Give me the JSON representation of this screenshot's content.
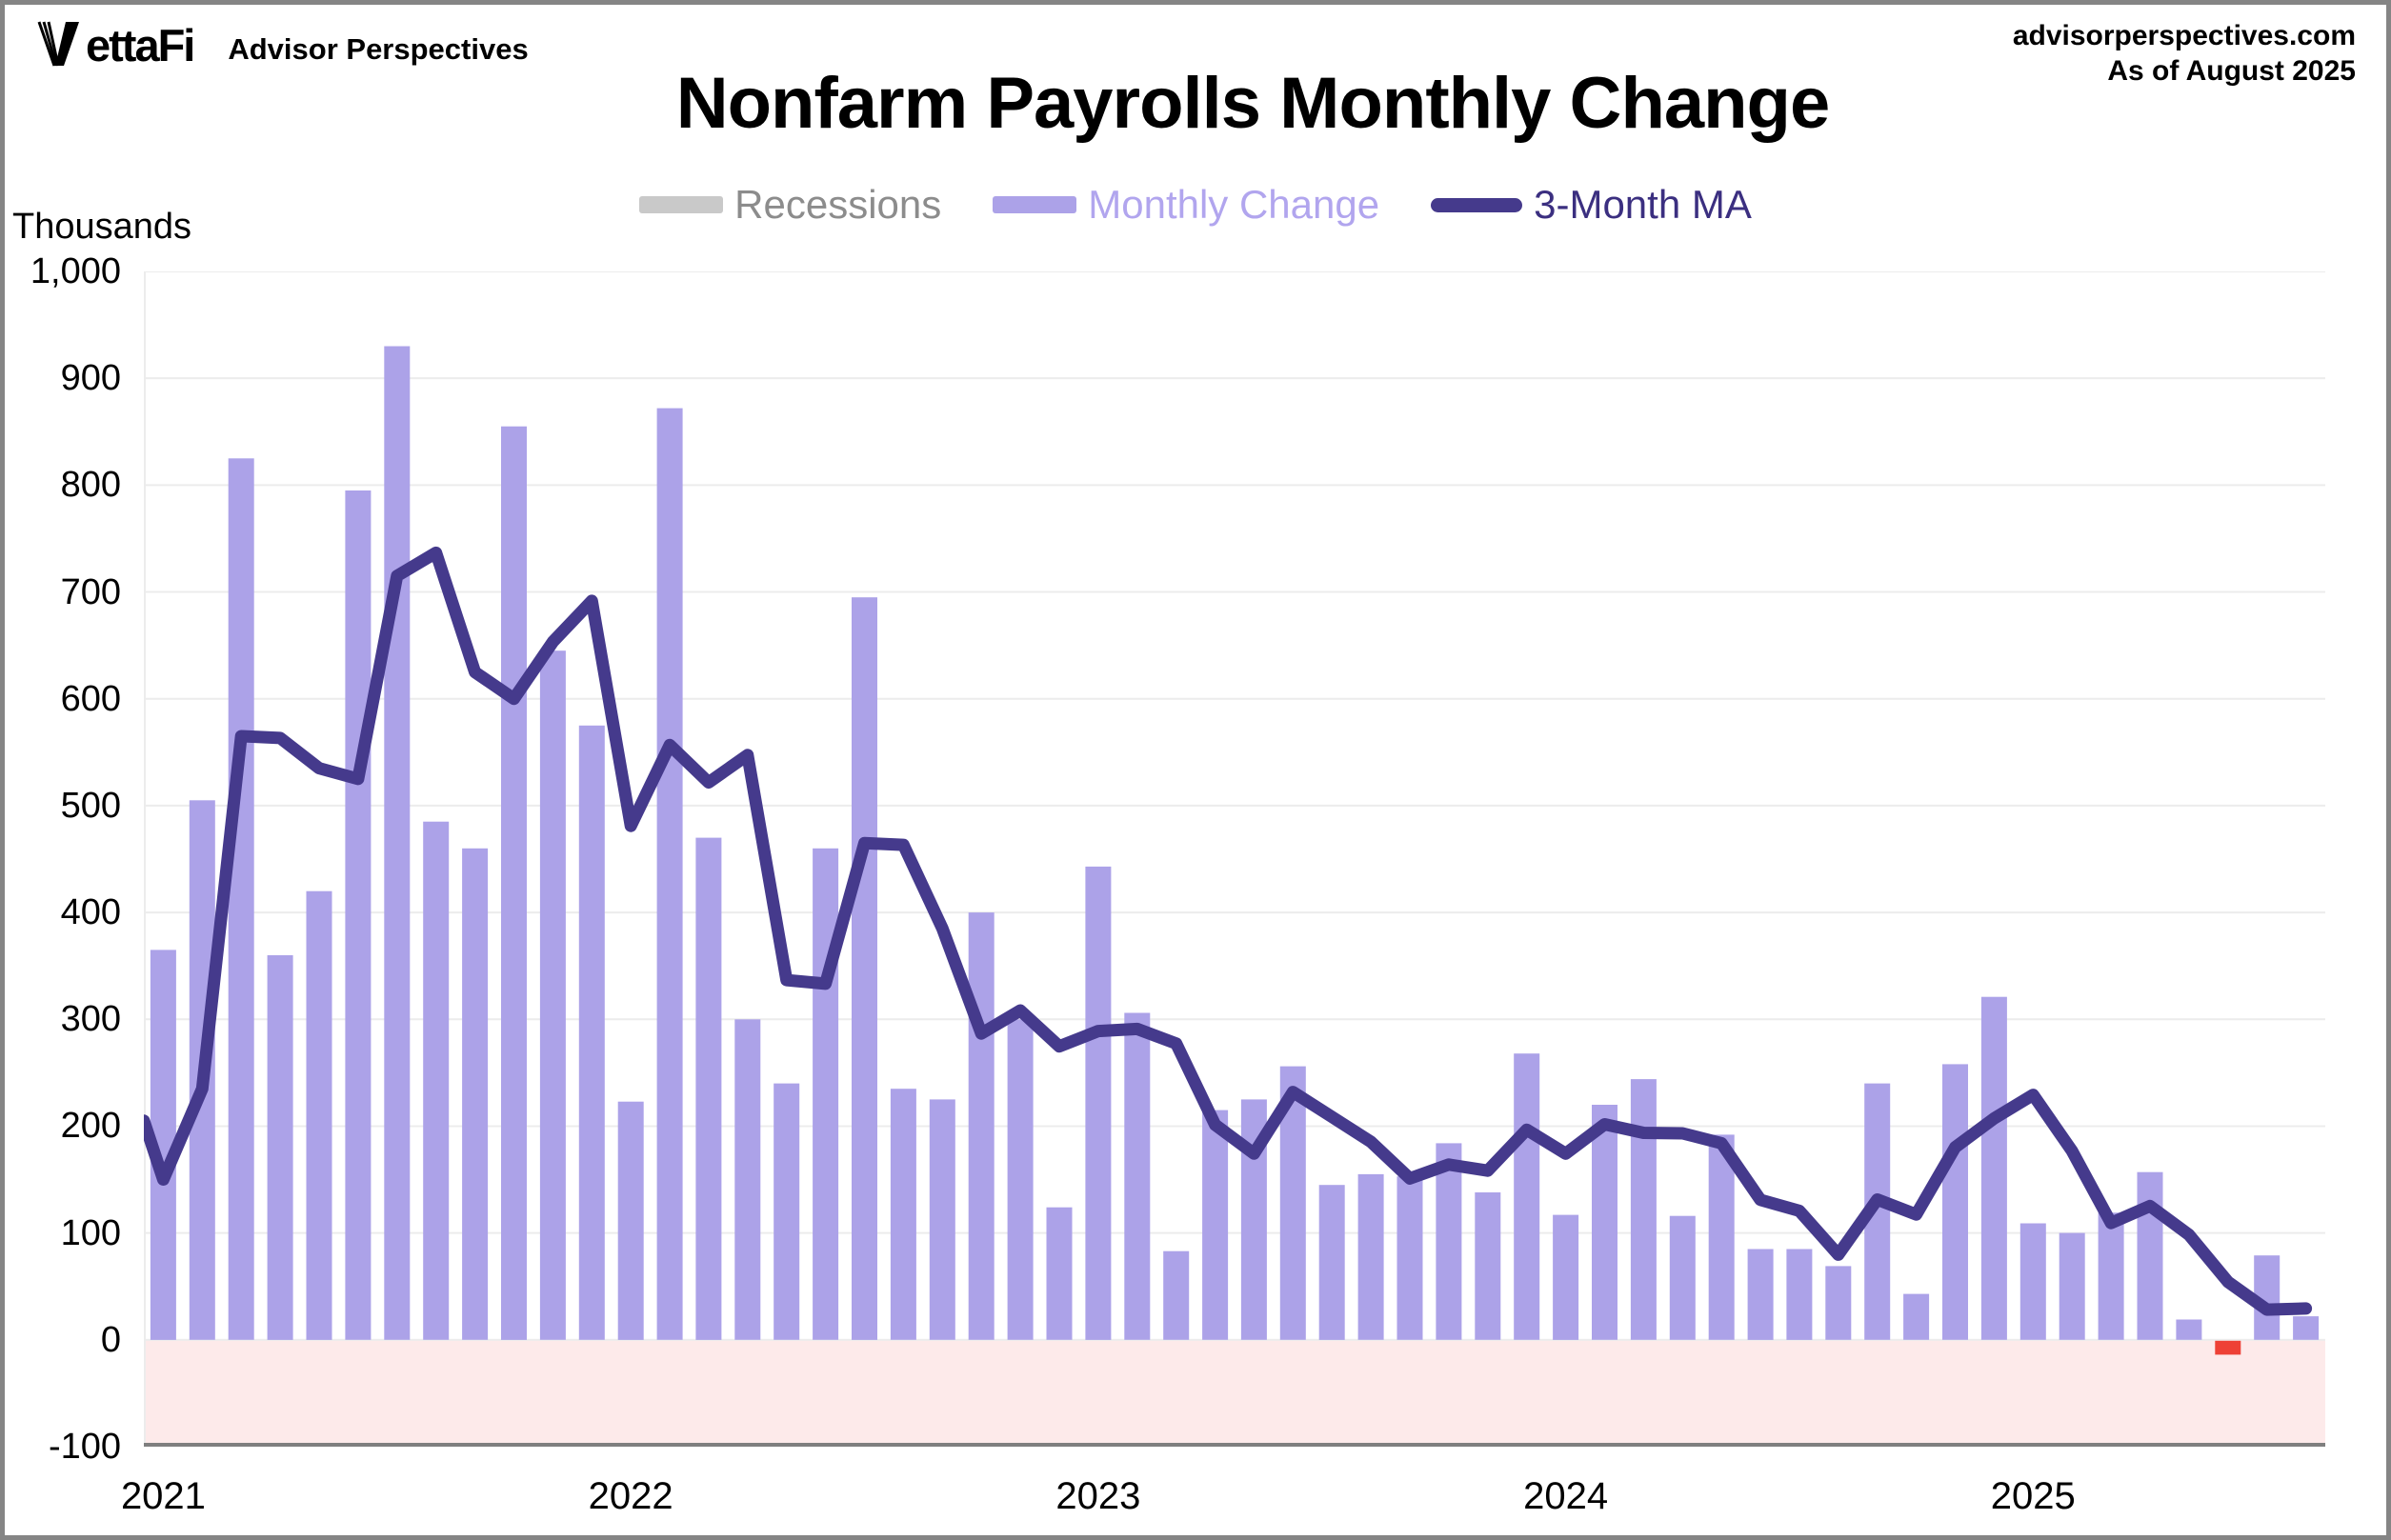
{
  "header": {
    "brand_full": "VettaFi",
    "brand_rest": "ettaFi",
    "brand_subtitle": "Advisor Perspectives",
    "source_url": "advisorperspectives.com",
    "as_of": "As of August 2025"
  },
  "legend": [
    {
      "label": "Recessions",
      "swatch": "box",
      "color": "#c9c9c9",
      "text_color": "#8c8c8c"
    },
    {
      "label": "Monthly Change",
      "swatch": "box",
      "color": "#aca2e8",
      "text_color": "#b1a5ee"
    },
    {
      "label": "3-Month MA",
      "swatch": "line",
      "color": "#453a8c",
      "text_color": "#3b2f80"
    }
  ],
  "chart_data": {
    "type": "bar",
    "title": "Nonfarm Payrolls Monthly Change",
    "ylabel": "Thousands",
    "x_unit": "month",
    "x_start": "Jan 2021",
    "x_end": "Aug 2025",
    "ylim": [
      -100,
      1000
    ],
    "grid": "horizontal",
    "legend_position": "top-center",
    "y_ticks": [
      {
        "label": "1,000",
        "value": 1000
      },
      {
        "label": "900",
        "value": 900
      },
      {
        "label": "800",
        "value": 800
      },
      {
        "label": "700",
        "value": 700
      },
      {
        "label": "600",
        "value": 600
      },
      {
        "label": "500",
        "value": 500
      },
      {
        "label": "400",
        "value": 400
      },
      {
        "label": "300",
        "value": 300
      },
      {
        "label": "200",
        "value": 200
      },
      {
        "label": "100",
        "value": 100
      },
      {
        "label": "0",
        "value": 0
      },
      {
        "label": "-100",
        "value": -100
      }
    ],
    "x_ticks": [
      {
        "label": "2021",
        "month_index": 0
      },
      {
        "label": "2022",
        "month_index": 12
      },
      {
        "label": "2023",
        "month_index": 24
      },
      {
        "label": "2024",
        "month_index": 36
      },
      {
        "label": "2025",
        "month_index": 48
      }
    ],
    "series": [
      {
        "name": "Monthly Change",
        "type": "bar",
        "values": [
          365,
          505,
          825,
          360,
          420,
          795,
          930,
          485,
          460,
          855,
          645,
          575,
          223,
          872,
          470,
          300,
          240,
          460,
          695,
          235,
          225,
          400,
          300,
          124,
          443,
          306,
          83,
          215,
          225,
          256,
          145,
          155,
          153,
          184,
          138,
          268,
          117,
          220,
          244,
          116,
          192,
          85,
          85,
          69,
          240,
          43,
          258,
          321,
          109,
          100,
          119,
          157,
          19,
          -13,
          79,
          22
        ]
      },
      {
        "name": "3-Month MA",
        "type": "line",
        "left_edge_value": 205,
        "values": [
          150,
          235,
          565,
          563.3,
          535,
          525,
          715,
          736.7,
          625,
          600,
          653.3,
          691.7,
          481,
          556.7,
          521.7,
          547.3,
          336.7,
          333.3,
          465,
          463.3,
          385,
          286.7,
          308.3,
          274.7,
          289,
          291,
          277.3,
          201.3,
          174.3,
          232,
          208.7,
          185.3,
          151,
          164,
          158.3,
          196.7,
          174.3,
          201.7,
          193.7,
          193.3,
          184,
          131,
          120.7,
          79.7,
          131.3,
          117.3,
          180.3,
          207.3,
          229.3,
          176.7,
          109.3,
          125.3,
          98.3,
          54.3,
          28.3,
          29.3
        ]
      }
    ],
    "colors": {
      "bar": "#aca2e8",
      "bar_negative": "#ee4136",
      "line": "#453a8c",
      "negative_shade": "#fdeaea",
      "gridline": "#ececec",
      "axis": "#7f7f7f"
    }
  }
}
